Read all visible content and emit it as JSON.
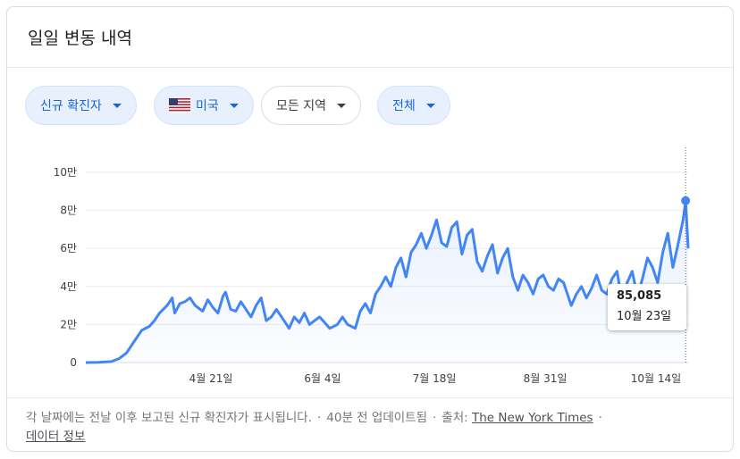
{
  "title": "일일 변동 내역",
  "chips": [
    {
      "label": "신규 확진자"
    },
    {
      "label": "미국"
    },
    {
      "label": "모든 지역"
    },
    {
      "label": "전체"
    }
  ],
  "tooltip": {
    "value": "85,085",
    "date": "10월 23일"
  },
  "footer": {
    "note": "각 날짜에는 전날 이후 보고된 신규 확진자가 표시됩니다.",
    "updated": "40분 전 업데이트됨",
    "source_label": "출처:",
    "source_name": "The New York Times",
    "data_info": "데이터 정보"
  },
  "colors": {
    "line": "#4285f4",
    "chip_text": "#1967d2"
  },
  "chart_data": {
    "type": "area",
    "x_labels": [
      "4월 21일",
      "6월 4일",
      "7월 18일",
      "8월 31일",
      "10월 14일"
    ],
    "y_ticks": [
      "0",
      "2만",
      "4만",
      "6만",
      "8만",
      "10만"
    ],
    "ylim": [
      0,
      100000
    ],
    "grid": true,
    "x_range": [
      "2020-03-01",
      "2020-10-24"
    ],
    "series": [
      {
        "values": [
          [
            "2020-03-01",
            0
          ],
          [
            "2020-03-06",
            100
          ],
          [
            "2020-03-11",
            500
          ],
          [
            "2020-03-14",
            2000
          ],
          [
            "2020-03-17",
            5000
          ],
          [
            "2020-03-20",
            11000
          ],
          [
            "2020-03-23",
            17000
          ],
          [
            "2020-03-26",
            19000
          ],
          [
            "2020-03-28",
            22000
          ],
          [
            "2020-03-30",
            26000
          ],
          [
            "2020-04-02",
            30000
          ],
          [
            "2020-04-04",
            34000
          ],
          [
            "2020-04-05",
            26000
          ],
          [
            "2020-04-07",
            31000
          ],
          [
            "2020-04-09",
            32000
          ],
          [
            "2020-04-11",
            34000
          ],
          [
            "2020-04-13",
            30000
          ],
          [
            "2020-04-16",
            27000
          ],
          [
            "2020-04-18",
            33000
          ],
          [
            "2020-04-20",
            29000
          ],
          [
            "2020-04-22",
            26000
          ],
          [
            "2020-04-24",
            35000
          ],
          [
            "2020-04-25",
            37000
          ],
          [
            "2020-04-27",
            28000
          ],
          [
            "2020-04-29",
            27000
          ],
          [
            "2020-05-01",
            32000
          ],
          [
            "2020-05-03",
            28000
          ],
          [
            "2020-05-05",
            24000
          ],
          [
            "2020-05-07",
            30000
          ],
          [
            "2020-05-09",
            34000
          ],
          [
            "2020-05-11",
            22000
          ],
          [
            "2020-05-13",
            24000
          ],
          [
            "2020-05-15",
            28000
          ],
          [
            "2020-05-18",
            22000
          ],
          [
            "2020-05-20",
            18000
          ],
          [
            "2020-05-22",
            24000
          ],
          [
            "2020-05-24",
            21000
          ],
          [
            "2020-05-26",
            26000
          ],
          [
            "2020-05-28",
            20000
          ],
          [
            "2020-05-30",
            22000
          ],
          [
            "2020-06-01",
            24000
          ],
          [
            "2020-06-03",
            21000
          ],
          [
            "2020-06-05",
            18000
          ],
          [
            "2020-06-08",
            20000
          ],
          [
            "2020-06-10",
            24000
          ],
          [
            "2020-06-12",
            20000
          ],
          [
            "2020-06-15",
            18000
          ],
          [
            "2020-06-17",
            27000
          ],
          [
            "2020-06-19",
            31000
          ],
          [
            "2020-06-21",
            26000
          ],
          [
            "2020-06-23",
            36000
          ],
          [
            "2020-06-25",
            40000
          ],
          [
            "2020-06-27",
            45000
          ],
          [
            "2020-06-29",
            40000
          ],
          [
            "2020-07-01",
            50000
          ],
          [
            "2020-07-03",
            55000
          ],
          [
            "2020-07-05",
            45000
          ],
          [
            "2020-07-07",
            58000
          ],
          [
            "2020-07-09",
            62000
          ],
          [
            "2020-07-11",
            68000
          ],
          [
            "2020-07-13",
            60000
          ],
          [
            "2020-07-15",
            67000
          ],
          [
            "2020-07-17",
            75000
          ],
          [
            "2020-07-19",
            63000
          ],
          [
            "2020-07-21",
            61000
          ],
          [
            "2020-07-23",
            71000
          ],
          [
            "2020-07-25",
            74000
          ],
          [
            "2020-07-27",
            57000
          ],
          [
            "2020-07-29",
            67000
          ],
          [
            "2020-07-31",
            70000
          ],
          [
            "2020-08-02",
            53000
          ],
          [
            "2020-08-04",
            48000
          ],
          [
            "2020-08-06",
            56000
          ],
          [
            "2020-08-08",
            62000
          ],
          [
            "2020-08-10",
            47000
          ],
          [
            "2020-08-12",
            55000
          ],
          [
            "2020-08-14",
            60000
          ],
          [
            "2020-08-16",
            45000
          ],
          [
            "2020-08-18",
            38000
          ],
          [
            "2020-08-20",
            46000
          ],
          [
            "2020-08-22",
            42000
          ],
          [
            "2020-08-24",
            36000
          ],
          [
            "2020-08-26",
            44000
          ],
          [
            "2020-08-28",
            46000
          ],
          [
            "2020-08-30",
            40000
          ],
          [
            "2020-09-01",
            38000
          ],
          [
            "2020-09-03",
            44000
          ],
          [
            "2020-09-05",
            42000
          ],
          [
            "2020-09-08",
            30000
          ],
          [
            "2020-09-10",
            36000
          ],
          [
            "2020-09-12",
            40000
          ],
          [
            "2020-09-14",
            34000
          ],
          [
            "2020-09-16",
            39000
          ],
          [
            "2020-09-18",
            46000
          ],
          [
            "2020-09-20",
            38000
          ],
          [
            "2020-09-22",
            36000
          ],
          [
            "2020-09-24",
            44000
          ],
          [
            "2020-09-26",
            48000
          ],
          [
            "2020-09-28",
            32000
          ],
          [
            "2020-09-30",
            42000
          ],
          [
            "2020-10-02",
            48000
          ],
          [
            "2020-10-04",
            35000
          ],
          [
            "2020-10-06",
            44000
          ],
          [
            "2020-10-08",
            55000
          ],
          [
            "2020-10-10",
            50000
          ],
          [
            "2020-10-12",
            42000
          ],
          [
            "2020-10-14",
            58000
          ],
          [
            "2020-10-16",
            68000
          ],
          [
            "2020-10-18",
            50000
          ],
          [
            "2020-10-20",
            62000
          ],
          [
            "2020-10-22",
            75000
          ],
          [
            "2020-10-23",
            85085
          ],
          [
            "2020-10-24",
            60000
          ]
        ]
      }
    ],
    "highlight": {
      "x": "2020-10-23",
      "y": 85085
    }
  }
}
